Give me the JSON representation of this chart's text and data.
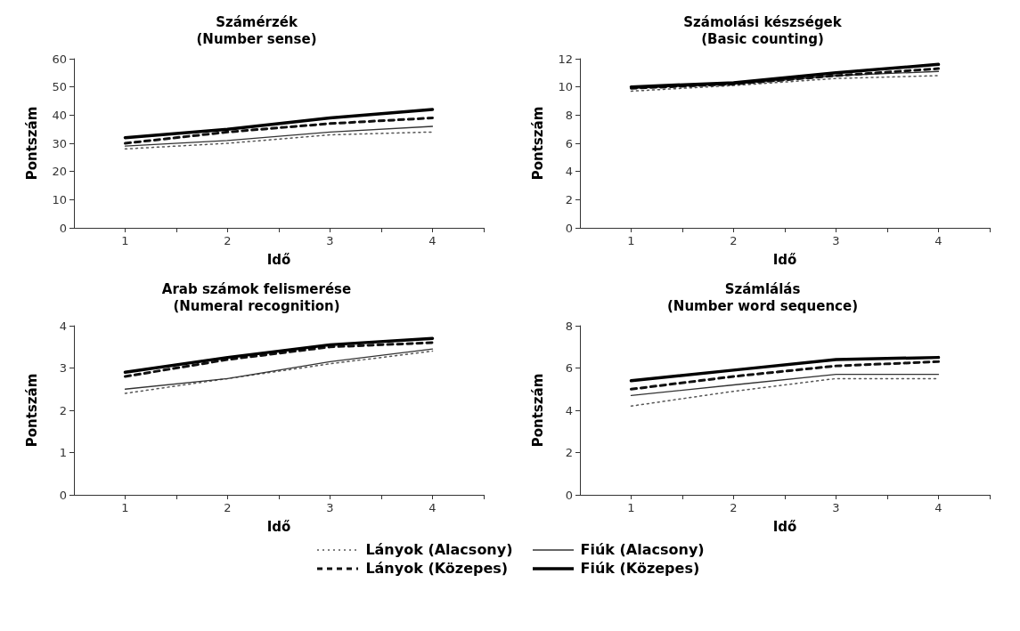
{
  "chart_data": [
    {
      "type": "line",
      "title": "Számérzék",
      "subtitle": "(Number sense)",
      "xlabel": "Idő",
      "ylabel": "Pontszám",
      "x": [
        1,
        2,
        3,
        4
      ],
      "xlim": [
        0.5,
        4.5
      ],
      "xticks": [
        1,
        2,
        3,
        4,
        {
          "value": 1.5,
          "label": null
        },
        {
          "value": 2.5,
          "label": null
        },
        {
          "value": 3.5,
          "label": null
        },
        {
          "value": 4.5,
          "label": null
        }
      ],
      "ylim": [
        0,
        60
      ],
      "yticks": [
        0,
        10,
        20,
        30,
        40,
        50,
        60
      ],
      "grid": false,
      "marker": "none",
      "legend": "bottom",
      "series": [
        {
          "name": "Lányok (Alacsony)",
          "color": "#555555",
          "line_style": "dotted",
          "values": [
            28,
            30,
            33,
            34
          ]
        },
        {
          "name": "Fiúk (Alacsony)",
          "color": "#333333",
          "line_style": "solid",
          "values": [
            29,
            31,
            34,
            36
          ]
        },
        {
          "name": "Lányok (Közepes)",
          "color": "#111111",
          "line_style": "dashed",
          "values": [
            30,
            34,
            37,
            39
          ]
        },
        {
          "name": "Fiúk (Közepes)",
          "color": "#000000",
          "line_style": "solid",
          "values": [
            32,
            35,
            39,
            42
          ]
        }
      ]
    },
    {
      "type": "line",
      "title": "Számolási készségek",
      "subtitle": "(Basic counting)",
      "xlabel": "Idő",
      "ylabel": "Pontszám",
      "x": [
        1,
        2,
        3,
        4
      ],
      "xlim": [
        0.5,
        4.5
      ],
      "xticks": [
        1,
        2,
        3,
        4,
        {
          "value": 1.5,
          "label": null
        },
        {
          "value": 2.5,
          "label": null
        },
        {
          "value": 3.5,
          "label": null
        },
        {
          "value": 4.5,
          "label": null
        }
      ],
      "ylim": [
        0,
        12
      ],
      "yticks": [
        0,
        2,
        4,
        6,
        8,
        10,
        12
      ],
      "grid": false,
      "marker": "none",
      "series": [
        {
          "color": "#555555",
          "line_style": "dotted",
          "values": [
            9.7,
            10.1,
            10.6,
            10.8
          ]
        },
        {
          "color": "#333333",
          "line_style": "solid",
          "values": [
            9.9,
            10.2,
            10.8,
            11.1
          ]
        },
        {
          "color": "#111111",
          "line_style": "dashed",
          "values": [
            9.9,
            10.2,
            10.8,
            11.3
          ]
        },
        {
          "color": "#000000",
          "line_style": "solid",
          "values": [
            10,
            10.3,
            11,
            11.6
          ]
        }
      ]
    },
    {
      "type": "line",
      "title": "Arab számok felismerése",
      "subtitle": "(Numeral recognition)",
      "xlabel": "Idő",
      "ylabel": "Pontszám",
      "x": [
        1,
        2,
        3,
        4
      ],
      "xlim": [
        0.5,
        4.5
      ],
      "xticks": [
        1,
        2,
        3,
        4,
        {
          "value": 1.5,
          "label": null
        },
        {
          "value": 2.5,
          "label": null
        },
        {
          "value": 3.5,
          "label": null
        },
        {
          "value": 4.5,
          "label": null
        }
      ],
      "ylim": [
        0,
        4
      ],
      "yticks": [
        0,
        1,
        2,
        3,
        4
      ],
      "grid": false,
      "marker": "none",
      "series": [
        {
          "color": "#555555",
          "line_style": "dotted",
          "values": [
            2.4,
            2.75,
            3.1,
            3.4
          ]
        },
        {
          "color": "#333333",
          "line_style": "solid",
          "values": [
            2.5,
            2.75,
            3.15,
            3.45
          ]
        },
        {
          "color": "#111111",
          "line_style": "dashed",
          "values": [
            2.8,
            3.2,
            3.5,
            3.6
          ]
        },
        {
          "color": "#000000",
          "line_style": "solid",
          "values": [
            2.9,
            3.25,
            3.55,
            3.7
          ]
        }
      ]
    },
    {
      "type": "line",
      "title": "Számlálás",
      "subtitle": "(Number word sequence)",
      "xlabel": "Idő",
      "ylabel": "Pontszám",
      "x": [
        1,
        2,
        3,
        4
      ],
      "xlim": [
        0.5,
        4.5
      ],
      "xticks": [
        1,
        2,
        3,
        4,
        {
          "value": 1.5,
          "label": null
        },
        {
          "value": 2.5,
          "label": null
        },
        {
          "value": 3.5,
          "label": null
        },
        {
          "value": 4.5,
          "label": null
        }
      ],
      "ylim": [
        0,
        8
      ],
      "yticks": [
        0,
        2,
        4,
        6,
        8
      ],
      "grid": false,
      "marker": "none",
      "series": [
        {
          "color": "#555555",
          "line_style": "dotted",
          "values": [
            4.2,
            4.9,
            5.5,
            5.5
          ]
        },
        {
          "color": "#333333",
          "line_style": "solid",
          "values": [
            4.7,
            5.2,
            5.7,
            5.7
          ]
        },
        {
          "color": "#111111",
          "line_style": "dashed",
          "values": [
            5.0,
            5.6,
            6.1,
            6.3
          ]
        },
        {
          "color": "#000000",
          "line_style": "solid",
          "values": [
            5.4,
            5.9,
            6.4,
            6.5
          ]
        }
      ]
    }
  ]
}
